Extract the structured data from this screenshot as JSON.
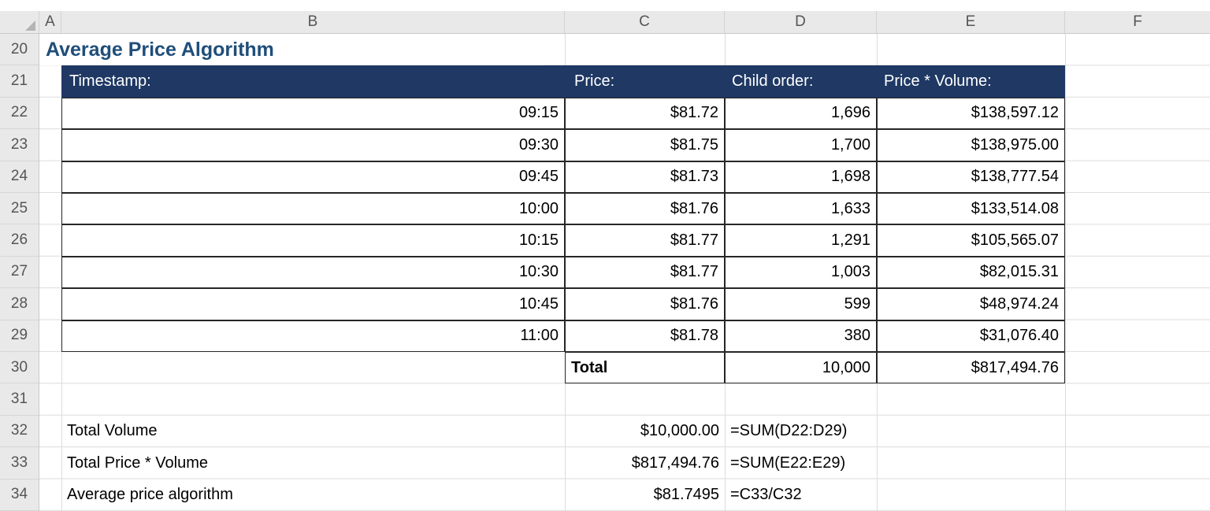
{
  "sheet": {
    "column_letters": [
      "A",
      "B",
      "C",
      "D",
      "E",
      "F"
    ],
    "row_numbers": [
      "20",
      "21",
      "22",
      "23",
      "24",
      "25",
      "26",
      "27",
      "28",
      "29",
      "30",
      "31",
      "32",
      "33",
      "34"
    ]
  },
  "title": "Average Price Algorithm",
  "table": {
    "headers": {
      "timestamp": "Timestamp:",
      "price": "Price:",
      "child_order": "Child order:",
      "price_volume": "Price * Volume:"
    },
    "rows": [
      {
        "timestamp": "09:15",
        "price": "$81.72",
        "child_order": "1,696",
        "price_volume": "$138,597.12"
      },
      {
        "timestamp": "09:30",
        "price": "$81.75",
        "child_order": "1,700",
        "price_volume": "$138,975.00"
      },
      {
        "timestamp": "09:45",
        "price": "$81.73",
        "child_order": "1,698",
        "price_volume": "$138,777.54"
      },
      {
        "timestamp": "10:00",
        "price": "$81.76",
        "child_order": "1,633",
        "price_volume": "$133,514.08"
      },
      {
        "timestamp": "10:15",
        "price": "$81.77",
        "child_order": "1,291",
        "price_volume": "$105,565.07"
      },
      {
        "timestamp": "10:30",
        "price": "$81.77",
        "child_order": "1,003",
        "price_volume": "$82,015.31"
      },
      {
        "timestamp": "10:45",
        "price": "$81.76",
        "child_order": "599",
        "price_volume": "$48,974.24"
      },
      {
        "timestamp": "11:00",
        "price": "$81.78",
        "child_order": "380",
        "price_volume": "$31,076.40"
      }
    ],
    "total_row": {
      "label": "Total",
      "child_order": "10,000",
      "price_volume": "$817,494.76"
    }
  },
  "summary": {
    "rows": [
      {
        "label": "Total Volume",
        "value": "$10,000.00",
        "formula": "=SUM(D22:D29)"
      },
      {
        "label": "Total Price * Volume",
        "value": "$817,494.76",
        "formula": "=SUM(E22:E29)"
      },
      {
        "label": "Average price algorithm",
        "value": "$81.7495",
        "formula": "=C33/C32"
      }
    ]
  },
  "colors": {
    "table_header_fill": "#1F3864",
    "table_header_text": "#FFFFFF",
    "title_text": "#1F4E79"
  }
}
